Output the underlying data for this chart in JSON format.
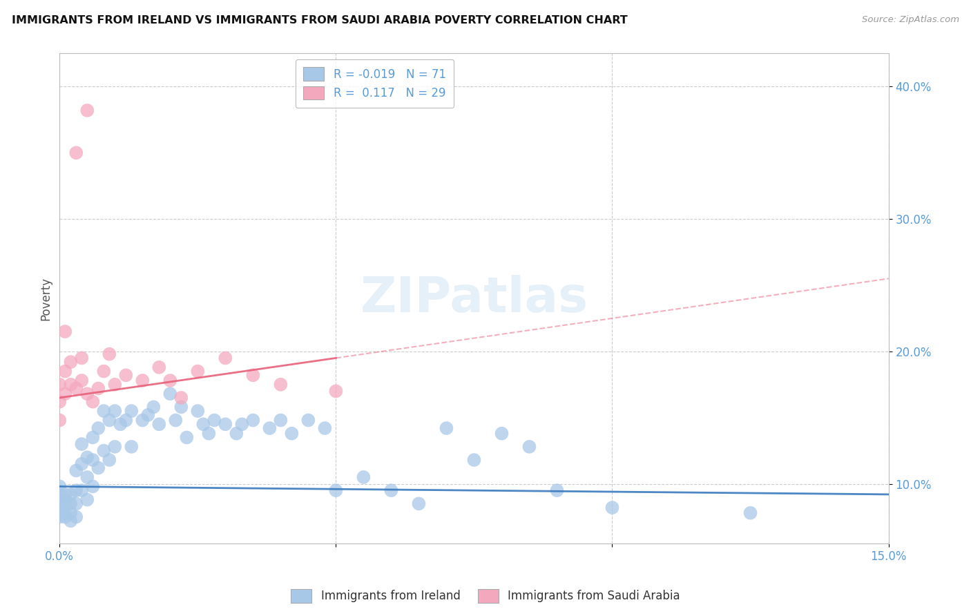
{
  "title": "IMMIGRANTS FROM IRELAND VS IMMIGRANTS FROM SAUDI ARABIA POVERTY CORRELATION CHART",
  "source": "Source: ZipAtlas.com",
  "ylabel": "Poverty",
  "xlim": [
    0.0,
    0.15
  ],
  "ylim": [
    0.055,
    0.425
  ],
  "xticks": [
    0.0,
    0.05,
    0.1,
    0.15
  ],
  "xticklabels": [
    "0.0%",
    "",
    "",
    "15.0%"
  ],
  "yticks": [
    0.1,
    0.2,
    0.3,
    0.4
  ],
  "yticklabels": [
    "10.0%",
    "20.0%",
    "30.0%",
    "40.0%"
  ],
  "ireland_color": "#a8c8e8",
  "saudi_color": "#f4a8be",
  "ireland_line_color": "#3a7abf",
  "saudi_line_color": "#e8607a",
  "ireland_R": -0.019,
  "ireland_N": 71,
  "saudi_R": 0.117,
  "saudi_N": 29,
  "watermark": "ZIPatlas",
  "ireland_x": [
    0.0,
    0.0,
    0.0,
    0.0,
    0.0,
    0.001,
    0.001,
    0.001,
    0.001,
    0.001,
    0.002,
    0.002,
    0.002,
    0.002,
    0.003,
    0.003,
    0.003,
    0.003,
    0.004,
    0.004,
    0.004,
    0.005,
    0.005,
    0.005,
    0.006,
    0.006,
    0.006,
    0.007,
    0.007,
    0.008,
    0.008,
    0.009,
    0.009,
    0.01,
    0.01,
    0.011,
    0.012,
    0.013,
    0.013,
    0.015,
    0.016,
    0.017,
    0.018,
    0.02,
    0.021,
    0.022,
    0.023,
    0.025,
    0.026,
    0.027,
    0.028,
    0.03,
    0.032,
    0.033,
    0.035,
    0.038,
    0.04,
    0.042,
    0.045,
    0.048,
    0.05,
    0.055,
    0.06,
    0.065,
    0.07,
    0.075,
    0.08,
    0.085,
    0.09,
    0.1,
    0.125
  ],
  "ireland_y": [
    0.092,
    0.098,
    0.088,
    0.082,
    0.075,
    0.088,
    0.092,
    0.085,
    0.078,
    0.075,
    0.092,
    0.085,
    0.078,
    0.072,
    0.11,
    0.095,
    0.085,
    0.075,
    0.13,
    0.115,
    0.095,
    0.12,
    0.105,
    0.088,
    0.135,
    0.118,
    0.098,
    0.142,
    0.112,
    0.155,
    0.125,
    0.148,
    0.118,
    0.155,
    0.128,
    0.145,
    0.148,
    0.155,
    0.128,
    0.148,
    0.152,
    0.158,
    0.145,
    0.168,
    0.148,
    0.158,
    0.135,
    0.155,
    0.145,
    0.138,
    0.148,
    0.145,
    0.138,
    0.145,
    0.148,
    0.142,
    0.148,
    0.138,
    0.148,
    0.142,
    0.095,
    0.105,
    0.095,
    0.085,
    0.142,
    0.118,
    0.138,
    0.128,
    0.095,
    0.082,
    0.078
  ],
  "saudi_x": [
    0.0,
    0.0,
    0.0,
    0.001,
    0.001,
    0.001,
    0.002,
    0.002,
    0.003,
    0.003,
    0.004,
    0.004,
    0.005,
    0.005,
    0.006,
    0.007,
    0.008,
    0.009,
    0.01,
    0.012,
    0.015,
    0.018,
    0.02,
    0.022,
    0.025,
    0.03,
    0.035,
    0.04,
    0.05
  ],
  "saudi_y": [
    0.175,
    0.162,
    0.148,
    0.215,
    0.185,
    0.168,
    0.192,
    0.175,
    0.35,
    0.172,
    0.195,
    0.178,
    0.382,
    0.168,
    0.162,
    0.172,
    0.185,
    0.198,
    0.175,
    0.182,
    0.178,
    0.188,
    0.178,
    0.165,
    0.185,
    0.195,
    0.182,
    0.175,
    0.17
  ],
  "ireland_line_x": [
    0.0,
    0.15
  ],
  "ireland_line_y": [
    0.098,
    0.092
  ],
  "saudi_line_x": [
    0.0,
    0.15
  ],
  "saudi_line_y": [
    0.165,
    0.255
  ]
}
